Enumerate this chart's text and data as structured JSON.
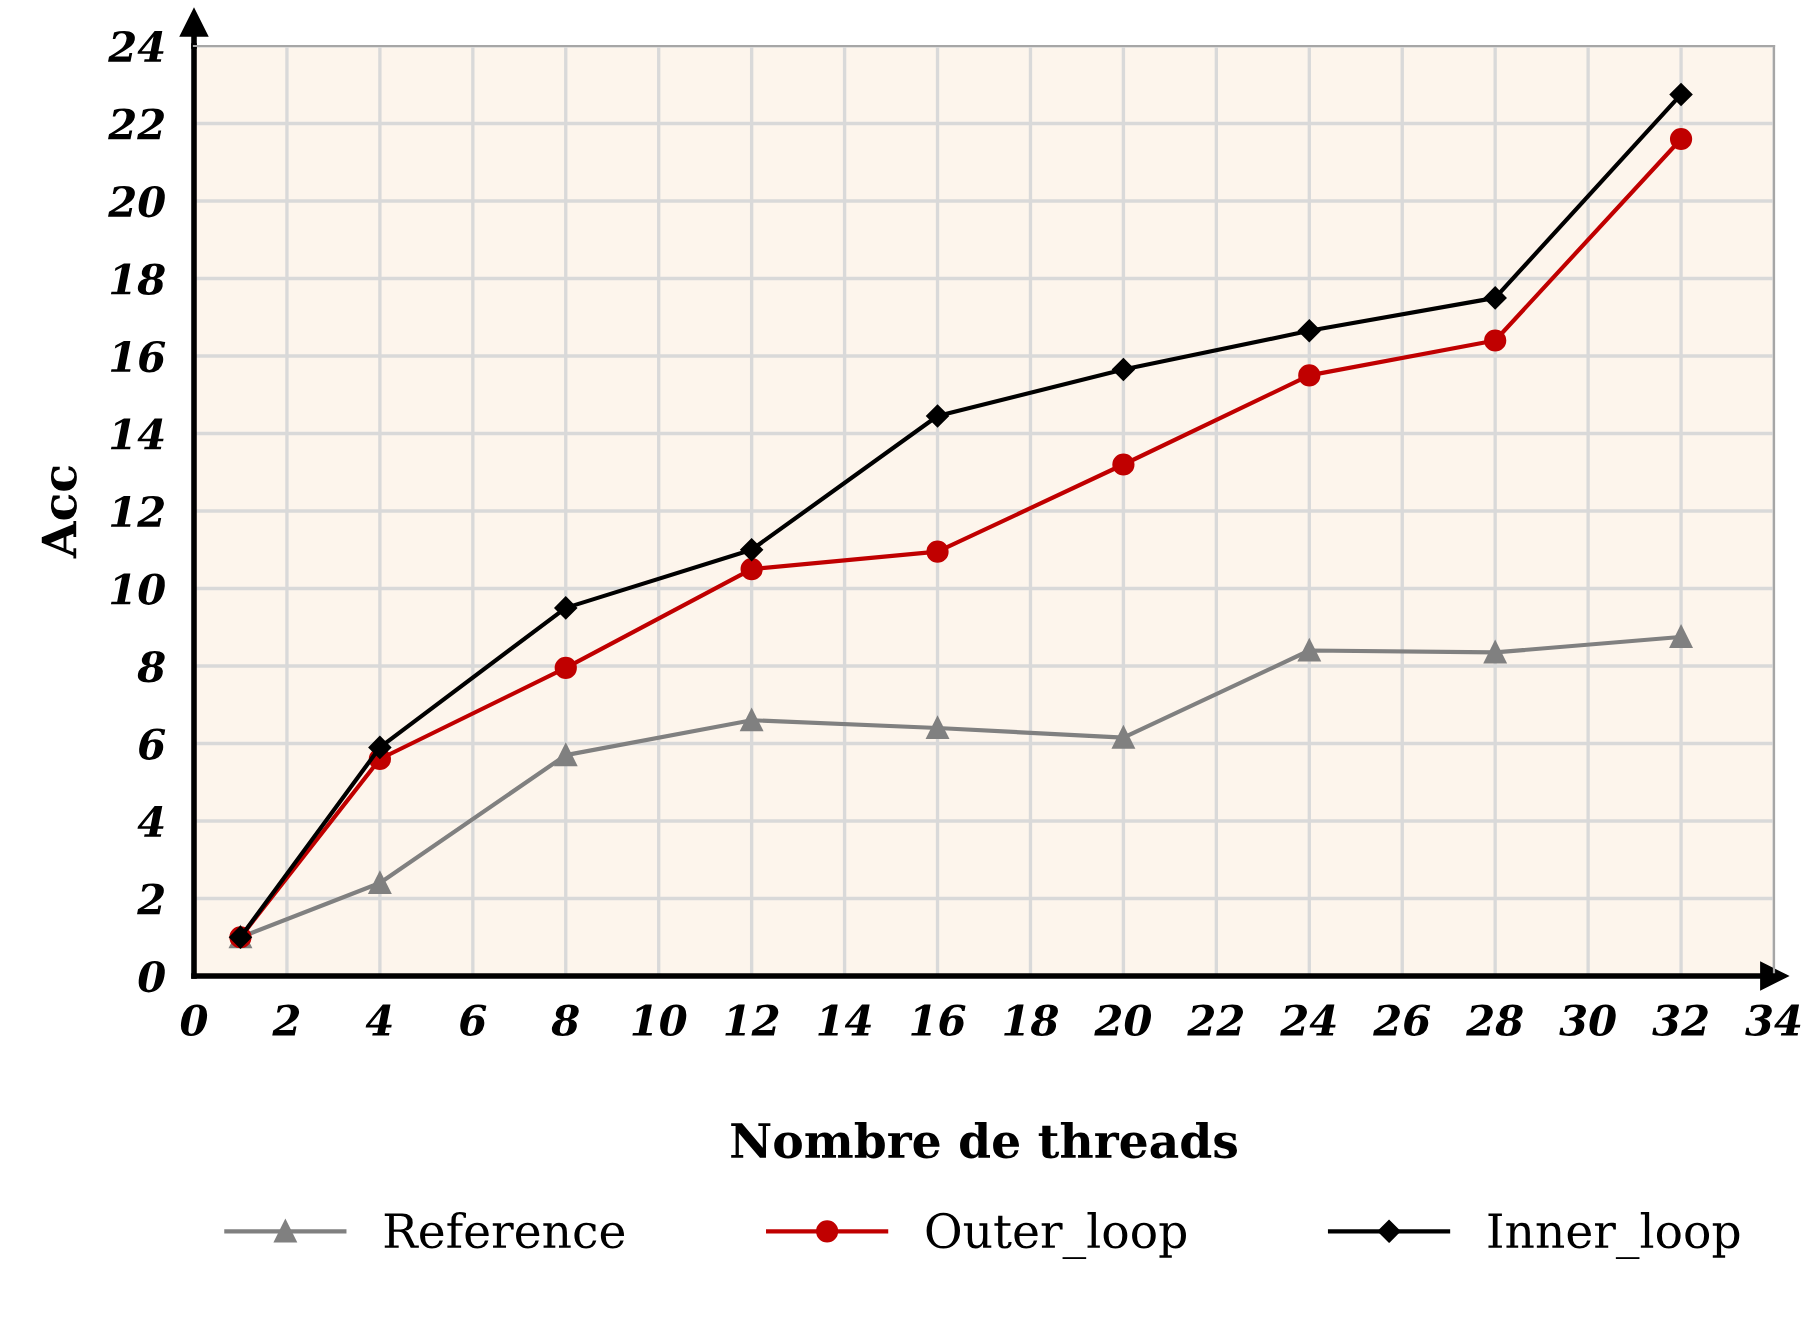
{
  "chart_data": {
    "type": "line",
    "xlabel": "Nombre de threads",
    "ylabel": "Acc",
    "x": [
      1,
      4,
      8,
      12,
      16,
      20,
      24,
      28,
      32
    ],
    "series": [
      {
        "name": "Reference",
        "color": "#808080",
        "marker": "triangle",
        "values": [
          1,
          2.4,
          5.7,
          6.6,
          6.4,
          6.15,
          8.4,
          8.35,
          8.75
        ]
      },
      {
        "name": "Outer_loop",
        "color": "#c00000",
        "marker": "circle",
        "values": [
          1,
          5.6,
          7.95,
          10.5,
          10.95,
          13.2,
          15.5,
          16.4,
          21.6
        ]
      },
      {
        "name": "Inner_loop",
        "color": "#000000",
        "marker": "diamond",
        "values": [
          1,
          5.9,
          9.5,
          11.0,
          14.45,
          15.65,
          16.65,
          17.5,
          22.75
        ]
      }
    ],
    "xlim": [
      0,
      34
    ],
    "xticks": [
      0,
      2,
      4,
      6,
      8,
      10,
      12,
      14,
      16,
      18,
      20,
      22,
      24,
      26,
      28,
      30,
      32,
      34
    ],
    "ylim": [
      0,
      24
    ],
    "yticks": [
      0,
      2,
      4,
      6,
      8,
      10,
      12,
      14,
      16,
      18,
      20,
      22,
      24
    ],
    "grid": true,
    "legend": "bottom"
  }
}
